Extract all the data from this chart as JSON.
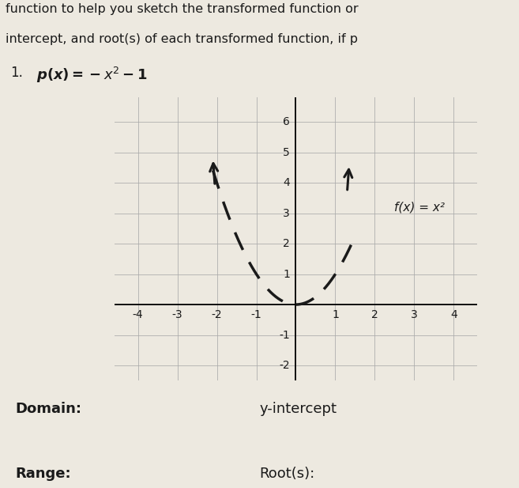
{
  "title_line1": "function to help you sketch the transformed function or",
  "title_line2": "intercept, and root(s) of each transformed function, if p",
  "xlim": [
    -4.6,
    4.6
  ],
  "ylim": [
    -2.5,
    6.8
  ],
  "xticks": [
    -4,
    -3,
    -2,
    -1,
    1,
    2,
    3,
    4
  ],
  "yticks": [
    -2,
    -1,
    1,
    2,
    3,
    4,
    5,
    6
  ],
  "background_color": "#ede9e0",
  "grid_color": "#aaaaaa",
  "curve_color": "#1a1a1a",
  "text_color": "#1a1a1a",
  "domain_label": "Domain:",
  "range_label": "Range:",
  "yintercept_label": "y-intercept",
  "roots_label": "Root(s):",
  "fx_label": "f(x) = x²",
  "eq_number": "1.",
  "eq_text": "p(x) = −x² − 1"
}
